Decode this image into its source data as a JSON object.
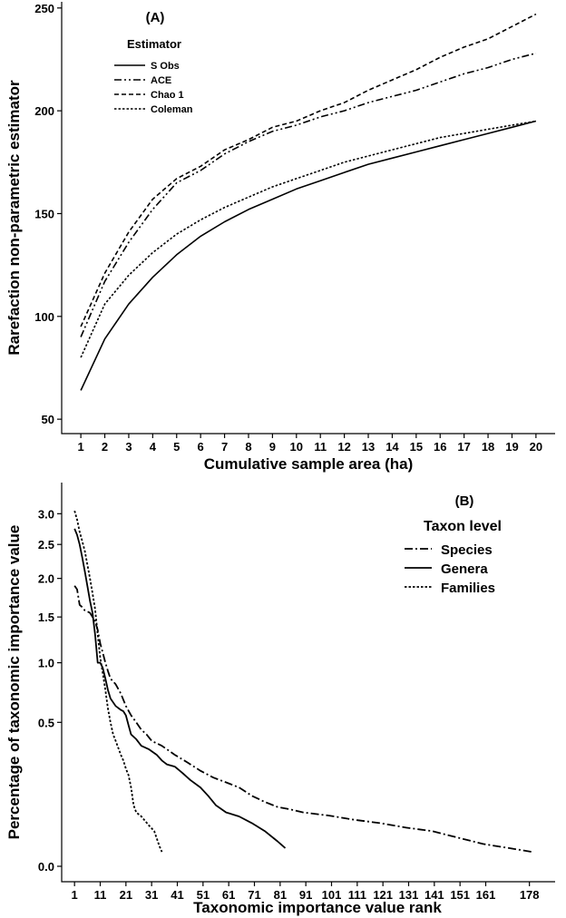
{
  "chart_data": [
    {
      "panel_label": "(A)",
      "type": "line",
      "xlabel": "Cumulative sample area (ha)",
      "ylabel": "Rarefaction non-parametric estimator",
      "x": [
        1,
        2,
        3,
        4,
        5,
        6,
        7,
        8,
        9,
        10,
        11,
        12,
        13,
        14,
        15,
        16,
        17,
        18,
        19,
        20
      ],
      "xlim": [
        0.2,
        20.8
      ],
      "ylim": [
        43,
        253
      ],
      "xticks": [
        1,
        2,
        3,
        4,
        5,
        6,
        7,
        8,
        9,
        10,
        11,
        12,
        13,
        14,
        15,
        16,
        17,
        18,
        19,
        20
      ],
      "yticks": [
        50,
        100,
        150,
        200,
        250
      ],
      "legend": {
        "title": "Estimator",
        "placement": "top-left"
      },
      "grid": false,
      "series": [
        {
          "name": "S Obs",
          "dash": "solid",
          "values": [
            64,
            89,
            106,
            119,
            130,
            139,
            146,
            152,
            157,
            162,
            166,
            170,
            174,
            177,
            180,
            183,
            186,
            189,
            192,
            195
          ]
        },
        {
          "name": "ACE",
          "dash": "dash-dot-dot",
          "values": [
            90,
            117,
            136,
            152,
            165,
            171,
            179,
            185,
            190,
            193,
            197,
            200,
            204,
            207,
            210,
            214,
            218,
            221,
            225,
            228
          ]
        },
        {
          "name": "Chao 1",
          "dash": "dashed",
          "values": [
            95,
            121,
            141,
            157,
            167,
            173,
            181,
            186,
            192,
            195,
            200,
            204,
            210,
            215,
            220,
            226,
            231,
            235,
            241,
            247
          ]
        },
        {
          "name": "Coleman",
          "dash": "dotted",
          "values": [
            80,
            106,
            120,
            131,
            140,
            147,
            153,
            158,
            163,
            167,
            171,
            175,
            178,
            181,
            184,
            187,
            189,
            191,
            193,
            195
          ]
        }
      ]
    },
    {
      "panel_label": "(B)",
      "type": "line",
      "xlabel": "Taxonomic importance value rank",
      "ylabel": "Percentage of taxonomic importance value",
      "xlim": [
        -4,
        188
      ],
      "yticks": [
        0.0,
        0.5,
        1.0,
        1.5,
        2.0,
        2.5,
        3.0
      ],
      "ytick_labels": [
        "0.0",
        "0.5",
        "1.0",
        "1.5",
        "2.0",
        "2.5",
        "3.0"
      ],
      "xticks": [
        1,
        11,
        21,
        31,
        41,
        51,
        61,
        71,
        81,
        91,
        101,
        111,
        121,
        131,
        141,
        151,
        161,
        178
      ],
      "y_scale": "sqrt",
      "legend": {
        "title": "Taxon level",
        "placement": "top-right"
      },
      "grid": false,
      "series": [
        {
          "name": "Species",
          "dash": "dash-dot",
          "points": [
            [
              1,
              1.9
            ],
            [
              2,
              1.85
            ],
            [
              3,
              1.65
            ],
            [
              4,
              1.62
            ],
            [
              5,
              1.58
            ],
            [
              7,
              1.55
            ],
            [
              9,
              1.45
            ],
            [
              10,
              1.35
            ],
            [
              11,
              1.2
            ],
            [
              12,
              1.1
            ],
            [
              13,
              1.0
            ],
            [
              14,
              0.92
            ],
            [
              15,
              0.85
            ],
            [
              17,
              0.8
            ],
            [
              19,
              0.72
            ],
            [
              21,
              0.62
            ],
            [
              23,
              0.55
            ],
            [
              25,
              0.5
            ],
            [
              27,
              0.45
            ],
            [
              29,
              0.42
            ],
            [
              31,
              0.38
            ],
            [
              35,
              0.35
            ],
            [
              40,
              0.3
            ],
            [
              45,
              0.26
            ],
            [
              50,
              0.22
            ],
            [
              55,
              0.19
            ],
            [
              60,
              0.17
            ],
            [
              65,
              0.15
            ],
            [
              70,
              0.12
            ],
            [
              75,
              0.1
            ],
            [
              80,
              0.085
            ],
            [
              85,
              0.078
            ],
            [
              90,
              0.07
            ],
            [
              100,
              0.062
            ],
            [
              110,
              0.052
            ],
            [
              120,
              0.045
            ],
            [
              130,
              0.036
            ],
            [
              140,
              0.03
            ],
            [
              150,
              0.02
            ],
            [
              160,
              0.012
            ],
            [
              170,
              0.008
            ],
            [
              179,
              0.005
            ]
          ]
        },
        {
          "name": "Genera",
          "dash": "solid",
          "points": [
            [
              1,
              2.75
            ],
            [
              2,
              2.65
            ],
            [
              3,
              2.5
            ],
            [
              4,
              2.3
            ],
            [
              5,
              2.1
            ],
            [
              6,
              1.9
            ],
            [
              7,
              1.7
            ],
            [
              8,
              1.55
            ],
            [
              9,
              1.3
            ],
            [
              10,
              1.0
            ],
            [
              11,
              1.0
            ],
            [
              12,
              0.95
            ],
            [
              13,
              0.85
            ],
            [
              14,
              0.75
            ],
            [
              15,
              0.68
            ],
            [
              17,
              0.62
            ],
            [
              19,
              0.59
            ],
            [
              20,
              0.58
            ],
            [
              21,
              0.55
            ],
            [
              22,
              0.48
            ],
            [
              23,
              0.42
            ],
            [
              25,
              0.39
            ],
            [
              27,
              0.35
            ],
            [
              30,
              0.33
            ],
            [
              33,
              0.3
            ],
            [
              35,
              0.27
            ],
            [
              37,
              0.25
            ],
            [
              40,
              0.24
            ],
            [
              43,
              0.21
            ],
            [
              46,
              0.18
            ],
            [
              50,
              0.15
            ],
            [
              53,
              0.12
            ],
            [
              56,
              0.09
            ],
            [
              60,
              0.07
            ],
            [
              65,
              0.06
            ],
            [
              70,
              0.045
            ],
            [
              75,
              0.03
            ],
            [
              80,
              0.015
            ],
            [
              83,
              0.008
            ]
          ]
        },
        {
          "name": "Families",
          "dash": "dotted",
          "points": [
            [
              1,
              3.05
            ],
            [
              2,
              2.9
            ],
            [
              3,
              2.7
            ],
            [
              4,
              2.55
            ],
            [
              5,
              2.4
            ],
            [
              6,
              2.2
            ],
            [
              7,
              2.0
            ],
            [
              8,
              1.8
            ],
            [
              9,
              1.6
            ],
            [
              10,
              1.3
            ],
            [
              11,
              1.05
            ],
            [
              12,
              0.9
            ],
            [
              13,
              0.75
            ],
            [
              14,
              0.6
            ],
            [
              15,
              0.5
            ],
            [
              16,
              0.42
            ],
            [
              17,
              0.38
            ],
            [
              18,
              0.34
            ],
            [
              19,
              0.3
            ],
            [
              20,
              0.27
            ],
            [
              21,
              0.23
            ],
            [
              22,
              0.2
            ],
            [
              23,
              0.15
            ],
            [
              24,
              0.09
            ],
            [
              25,
              0.07
            ],
            [
              27,
              0.06
            ],
            [
              30,
              0.04
            ],
            [
              32,
              0.03
            ],
            [
              34,
              0.01
            ],
            [
              35,
              0.005
            ]
          ]
        }
      ]
    }
  ]
}
